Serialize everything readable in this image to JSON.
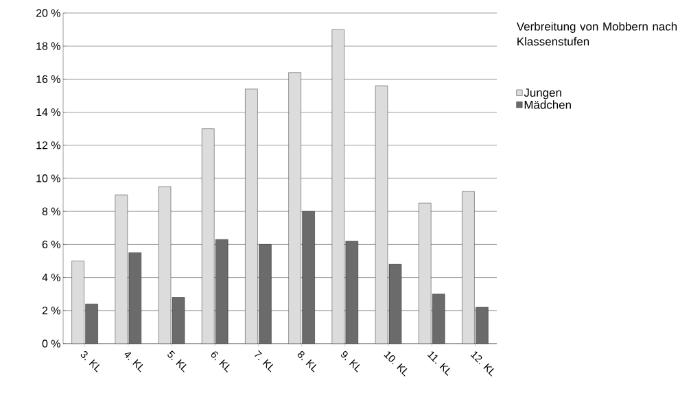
{
  "chart_data": {
    "type": "bar",
    "title": "Verbreitung von Mobbern nach Klassenstufen",
    "categories": [
      "3. KL",
      "4. KL",
      "5. KL",
      "6. KL",
      "7. KL",
      "8. KL",
      "9. KL",
      "10. KL",
      "11. KL",
      "12. KL"
    ],
    "series": [
      {
        "name": "Jungen",
        "color": "#dcdcdc",
        "values": [
          5.0,
          9.0,
          9.5,
          13.0,
          15.4,
          16.4,
          19.0,
          15.6,
          8.5,
          9.2
        ]
      },
      {
        "name": "Mädchen",
        "color": "#6b6b6b",
        "values": [
          2.4,
          5.5,
          2.8,
          6.3,
          6.0,
          8.0,
          6.2,
          4.8,
          3.0,
          2.2
        ]
      }
    ],
    "ylim": [
      0,
      20
    ],
    "yticks": [
      {
        "value": 0,
        "label": "0 %"
      },
      {
        "value": 2,
        "label": "2 %"
      },
      {
        "value": 4,
        "label": "4 %"
      },
      {
        "value": 6,
        "label": "6 %"
      },
      {
        "value": 8,
        "label": "8 %"
      },
      {
        "value": 10,
        "label": "10 %"
      },
      {
        "value": 12,
        "label": "12 %"
      },
      {
        "value": 14,
        "label": "14 %"
      },
      {
        "value": 16,
        "label": "16 %"
      },
      {
        "value": 18,
        "label": "18 %"
      },
      {
        "value": 20,
        "label": "20 %"
      }
    ],
    "grid": "y",
    "legend": "right"
  }
}
